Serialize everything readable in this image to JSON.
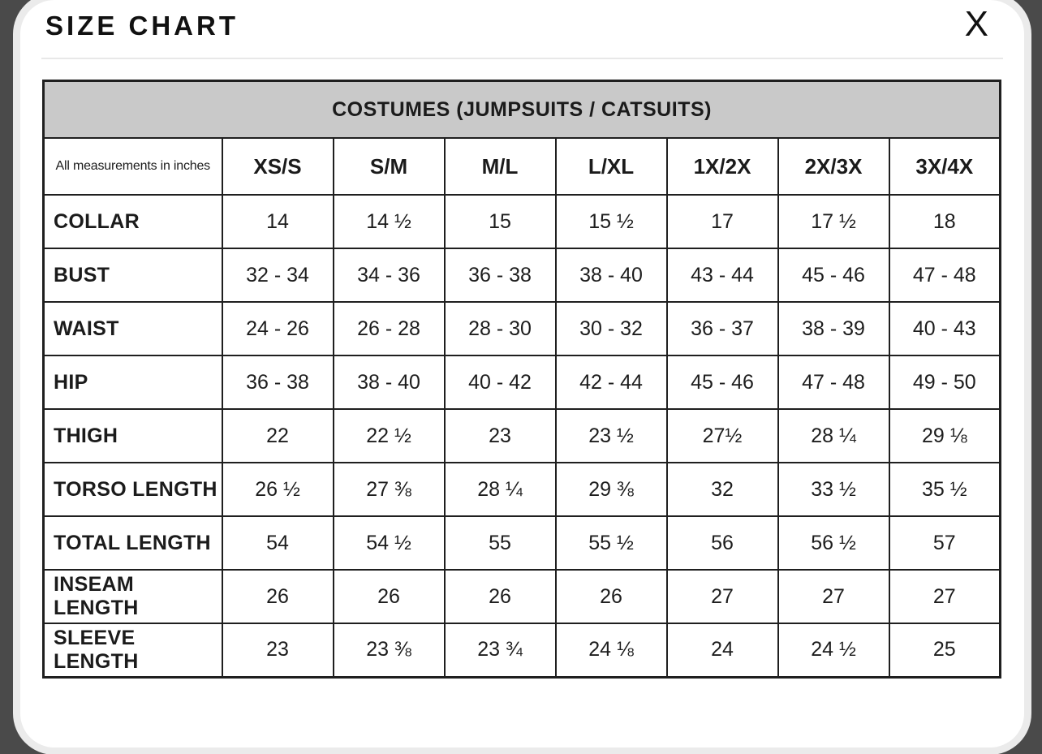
{
  "modal": {
    "title": "SIZE CHART",
    "close": "X"
  },
  "table": {
    "caption": "COSTUMES (JUMPSUITS / CATSUITS)",
    "note": "All measurements in inches",
    "columns": [
      "XS/S",
      "S/M",
      "M/L",
      "L/XL",
      "1X/2X",
      "2X/3X",
      "3X/4X"
    ],
    "rows": [
      {
        "label": "COLLAR",
        "values": [
          "14",
          "14 ½",
          "15",
          "15 ½",
          "17",
          "17 ½",
          "18"
        ]
      },
      {
        "label": "BUST",
        "values": [
          "32 - 34",
          "34 - 36",
          "36 - 38",
          "38 - 40",
          "43 - 44",
          "45 - 46",
          "47 - 48"
        ]
      },
      {
        "label": "WAIST",
        "values": [
          "24 - 26",
          "26 - 28",
          "28 - 30",
          "30 - 32",
          "36 - 37",
          "38 - 39",
          "40 - 43"
        ]
      },
      {
        "label": "HIP",
        "values": [
          "36 - 38",
          "38 - 40",
          "40 - 42",
          "42 - 44",
          "45 - 46",
          "47 - 48",
          "49 - 50"
        ]
      },
      {
        "label": "THIGH",
        "values": [
          "22",
          "22 ½",
          "23",
          "23 ½",
          "27½",
          "28 ¼",
          "29 ⅛"
        ]
      },
      {
        "label": "TORSO LENGTH",
        "values": [
          "26 ½",
          "27 ⅜",
          "28 ¼",
          "29 ⅜",
          "32",
          "33 ½",
          "35 ½"
        ]
      },
      {
        "label": "TOTAL LENGTH",
        "values": [
          "54",
          "54 ½",
          "55",
          "55 ½",
          "56",
          "56 ½",
          "57"
        ]
      },
      {
        "label": "INSEAM LENGTH",
        "values": [
          "26",
          "26",
          "26",
          "26",
          "27",
          "27",
          "27"
        ]
      },
      {
        "label": "SLEEVE LENGTH",
        "values": [
          "23",
          "23 ⅜",
          "23 ¾",
          "24 ⅛",
          "24",
          "24 ½",
          "25"
        ]
      }
    ]
  },
  "colors": {
    "backdrop": "#4a4a4a",
    "modal_rim": "#ebebeb",
    "caption_bg": "#c9c9c9",
    "table_border": "#1f1f1f"
  }
}
